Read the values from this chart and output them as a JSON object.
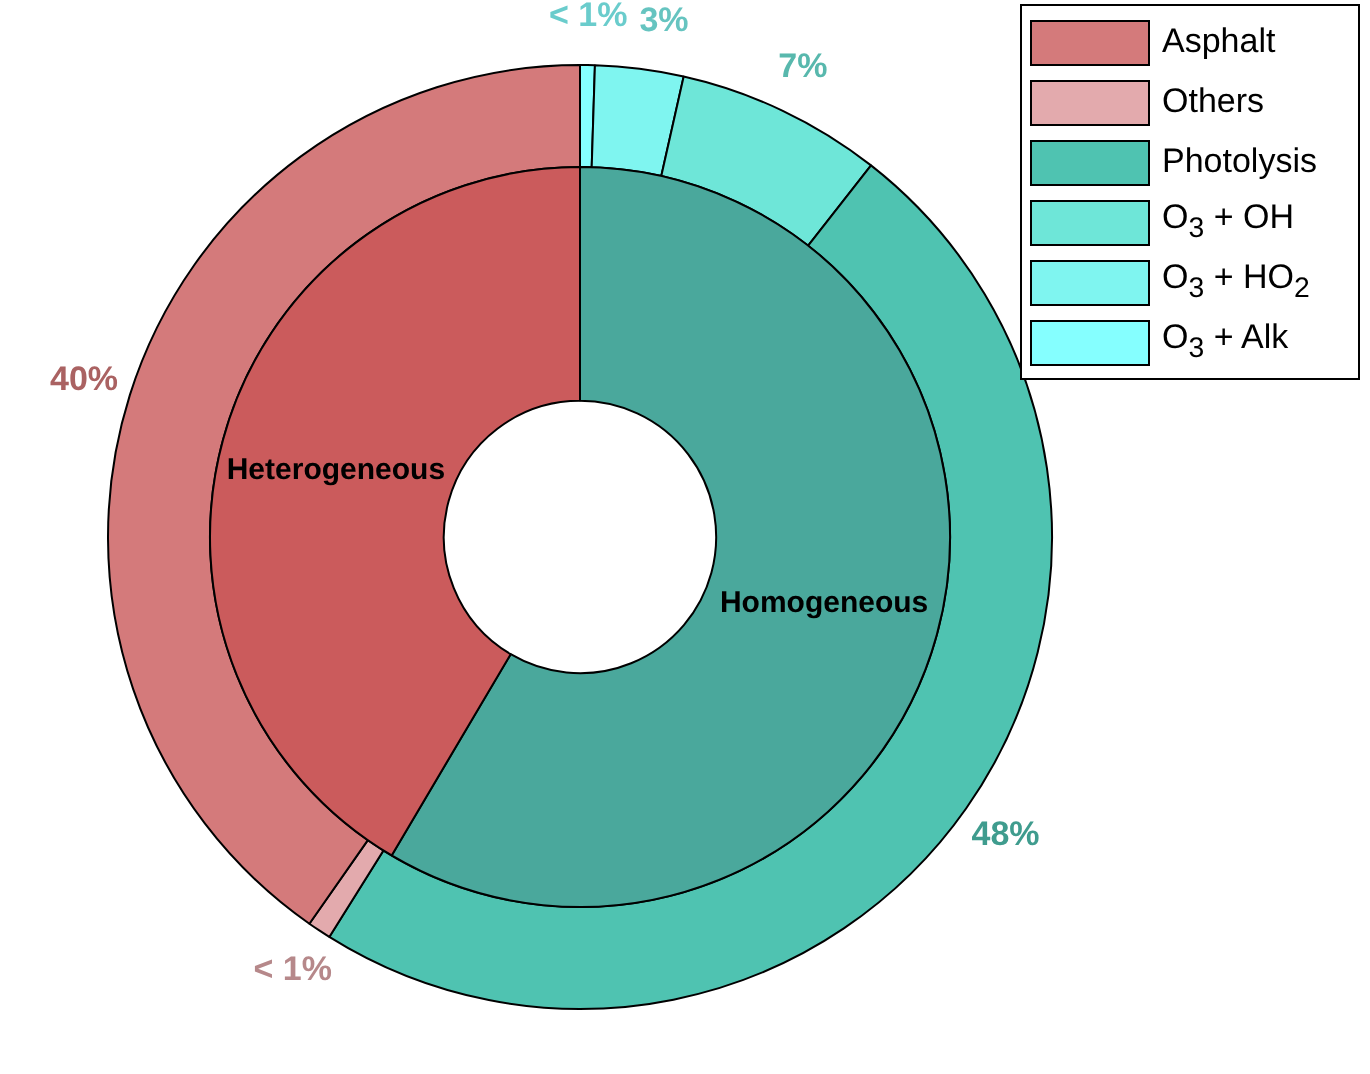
{
  "chart_data": [
    {
      "type": "donut",
      "legend": "top right",
      "categories": [
        "Asphalt",
        "Others",
        "Photolysis",
        "O$_{3}$ + OH",
        "O$_{3}$ + HO$_{2}$",
        "O$_{3}$ + Alk"
      ],
      "values": [
        40,
        0.8,
        48,
        7,
        3,
        0.5
      ],
      "colors": [
        "#d47a7b",
        "#e3aaad",
        "#4fc3b1",
        "#6ee6d8",
        "#7ff5f0",
        "#85ffff"
      ],
      "value_labels": [
        "40%",
        "< 1%",
        "48%",
        "7%",
        "3%",
        "< 1%"
      ]
    },
    {
      "type": "donut",
      "categories": [
        "Heterogeneous",
        "Homogeneous"
      ],
      "values": [
        41.5,
        58.5
      ],
      "colors": [
        "#cb5b5c",
        "#4aa89c"
      ]
    }
  ]
}
